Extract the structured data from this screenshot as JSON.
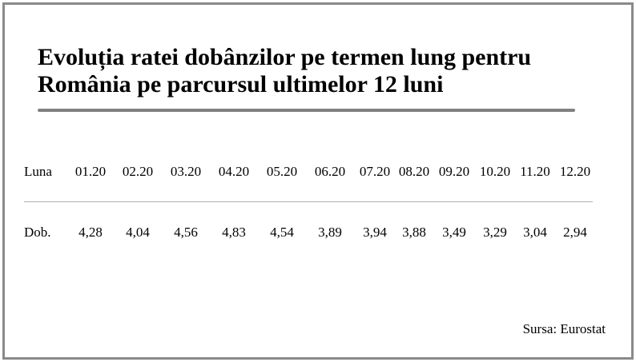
{
  "header": {
    "title": "Evoluția ratei dobânzilor pe termen lung pentru România pe parcursul ultimelor 12 luni"
  },
  "table": {
    "rows": [
      [
        "Luna",
        "01.20",
        "02.20",
        "03.20",
        "04.20",
        "05.20",
        "06.20",
        "07.20",
        "08.20",
        "09.20",
        "10.20",
        "11.20",
        "12.20"
      ],
      [
        "Dob.",
        "4,28",
        "4,04",
        "4,56",
        "4,83",
        "4,54",
        "3,89",
        "3,94",
        "3,88",
        "3,49",
        "3,29",
        "3,04",
        "2,94"
      ]
    ]
  },
  "footer": {
    "source": "Sursa: Eurostat"
  }
}
